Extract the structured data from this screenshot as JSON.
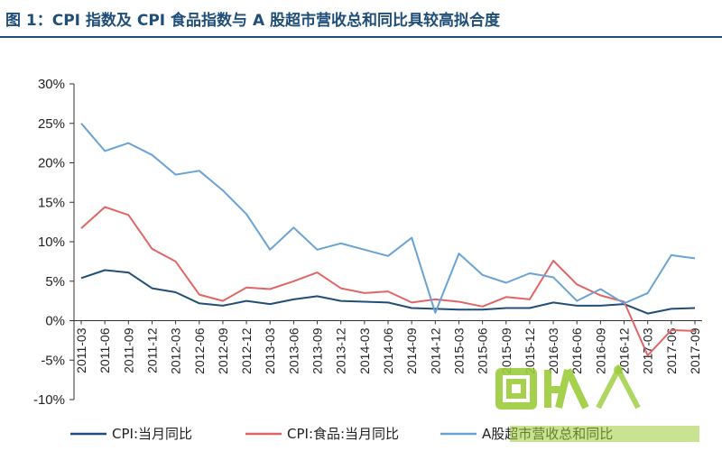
{
  "title": "图 1：CPI 指数及 CPI 食品指数与 A 股超市营收总和同比具较高拟合度",
  "chart_data": {
    "type": "line",
    "title": "图 1：CPI 指数及 CPI 食品指数与 A 股超市营收总和同比具较高拟合度",
    "xlabel": "",
    "ylabel": "",
    "ylim": [
      -10,
      30
    ],
    "y_ticks": [
      "-10%",
      "-5%",
      "0%",
      "5%",
      "10%",
      "15%",
      "20%",
      "25%",
      "30%"
    ],
    "x_ticks": [
      "2011-03",
      "2011-06",
      "2011-09",
      "2011-12",
      "2012-03",
      "2012-06",
      "2012-09",
      "2012-12",
      "2013-03",
      "2013-06",
      "2013-09",
      "2013-12",
      "2014-03",
      "2014-06",
      "2014-09",
      "2014-12",
      "2015-03",
      "2015-06",
      "2015-09",
      "2015-12",
      "2016-03",
      "2016-06",
      "2016-09",
      "2016-12",
      "2017-03",
      "2017-06",
      "2017-09"
    ],
    "legend_position": "bottom",
    "grid": false,
    "series": [
      {
        "name": "CPI:当月同比",
        "color": "#1f4e79",
        "points": [
          [
            "2011-03",
            5.4
          ],
          [
            "2011-06",
            6.4
          ],
          [
            "2011-09",
            6.1
          ],
          [
            "2011-12",
            4.1
          ],
          [
            "2012-03",
            3.6
          ],
          [
            "2012-06",
            2.2
          ],
          [
            "2012-09",
            1.9
          ],
          [
            "2012-12",
            2.5
          ],
          [
            "2013-03",
            2.1
          ],
          [
            "2013-06",
            2.7
          ],
          [
            "2013-09",
            3.1
          ],
          [
            "2013-12",
            2.5
          ],
          [
            "2014-03",
            2.4
          ],
          [
            "2014-06",
            2.3
          ],
          [
            "2014-09",
            1.6
          ],
          [
            "2014-12",
            1.5
          ],
          [
            "2015-03",
            1.4
          ],
          [
            "2015-06",
            1.4
          ],
          [
            "2015-09",
            1.6
          ],
          [
            "2015-12",
            1.6
          ],
          [
            "2016-03",
            2.3
          ],
          [
            "2016-06",
            1.9
          ],
          [
            "2016-09",
            1.9
          ],
          [
            "2016-12",
            2.1
          ],
          [
            "2017-03",
            0.9
          ],
          [
            "2017-06",
            1.5
          ],
          [
            "2017-09",
            1.6
          ]
        ]
      },
      {
        "name": "CPI:食品:当月同比",
        "color": "#e06666",
        "points": [
          [
            "2011-03",
            11.7
          ],
          [
            "2011-06",
            14.4
          ],
          [
            "2011-09",
            13.4
          ],
          [
            "2011-12",
            9.1
          ],
          [
            "2012-03",
            7.5
          ],
          [
            "2012-06",
            3.3
          ],
          [
            "2012-09",
            2.5
          ],
          [
            "2012-12",
            4.2
          ],
          [
            "2013-03",
            4.0
          ],
          [
            "2013-06",
            5.0
          ],
          [
            "2013-09",
            6.1
          ],
          [
            "2013-12",
            4.1
          ],
          [
            "2014-03",
            3.5
          ],
          [
            "2014-06",
            3.7
          ],
          [
            "2014-09",
            2.3
          ],
          [
            "2014-12",
            2.7
          ],
          [
            "2015-03",
            2.4
          ],
          [
            "2015-06",
            1.8
          ],
          [
            "2015-09",
            3.0
          ],
          [
            "2015-12",
            2.7
          ],
          [
            "2016-03",
            7.6
          ],
          [
            "2016-06",
            4.6
          ],
          [
            "2016-09",
            3.2
          ],
          [
            "2016-12",
            2.4
          ],
          [
            "2017-03",
            -4.4
          ],
          [
            "2017-06",
            -1.2
          ],
          [
            "2017-09",
            -1.3
          ]
        ]
      },
      {
        "name": "A股超市营收总和同比",
        "color": "#6aa3d3",
        "points": [
          [
            "2011-03",
            25.0
          ],
          [
            "2011-06",
            21.5
          ],
          [
            "2011-09",
            22.5
          ],
          [
            "2011-12",
            21.0
          ],
          [
            "2012-03",
            18.5
          ],
          [
            "2012-06",
            19.0
          ],
          [
            "2012-09",
            16.5
          ],
          [
            "2012-12",
            13.5
          ],
          [
            "2013-03",
            9.0
          ],
          [
            "2013-06",
            11.8
          ],
          [
            "2013-09",
            9.0
          ],
          [
            "2013-12",
            9.8
          ],
          [
            "2014-03",
            9.0
          ],
          [
            "2014-06",
            8.2
          ],
          [
            "2014-09",
            10.5
          ],
          [
            "2014-12",
            1.0
          ],
          [
            "2015-03",
            8.5
          ],
          [
            "2015-06",
            5.8
          ],
          [
            "2015-09",
            4.8
          ],
          [
            "2015-12",
            6.0
          ],
          [
            "2016-03",
            5.5
          ],
          [
            "2016-06",
            2.5
          ],
          [
            "2016-09",
            4.0
          ],
          [
            "2016-12",
            2.2
          ],
          [
            "2017-03",
            3.5
          ],
          [
            "2017-06",
            8.3
          ],
          [
            "2017-09",
            7.9
          ]
        ]
      }
    ]
  },
  "icons": {
    "watermark": "recycle-logo-watermark"
  }
}
